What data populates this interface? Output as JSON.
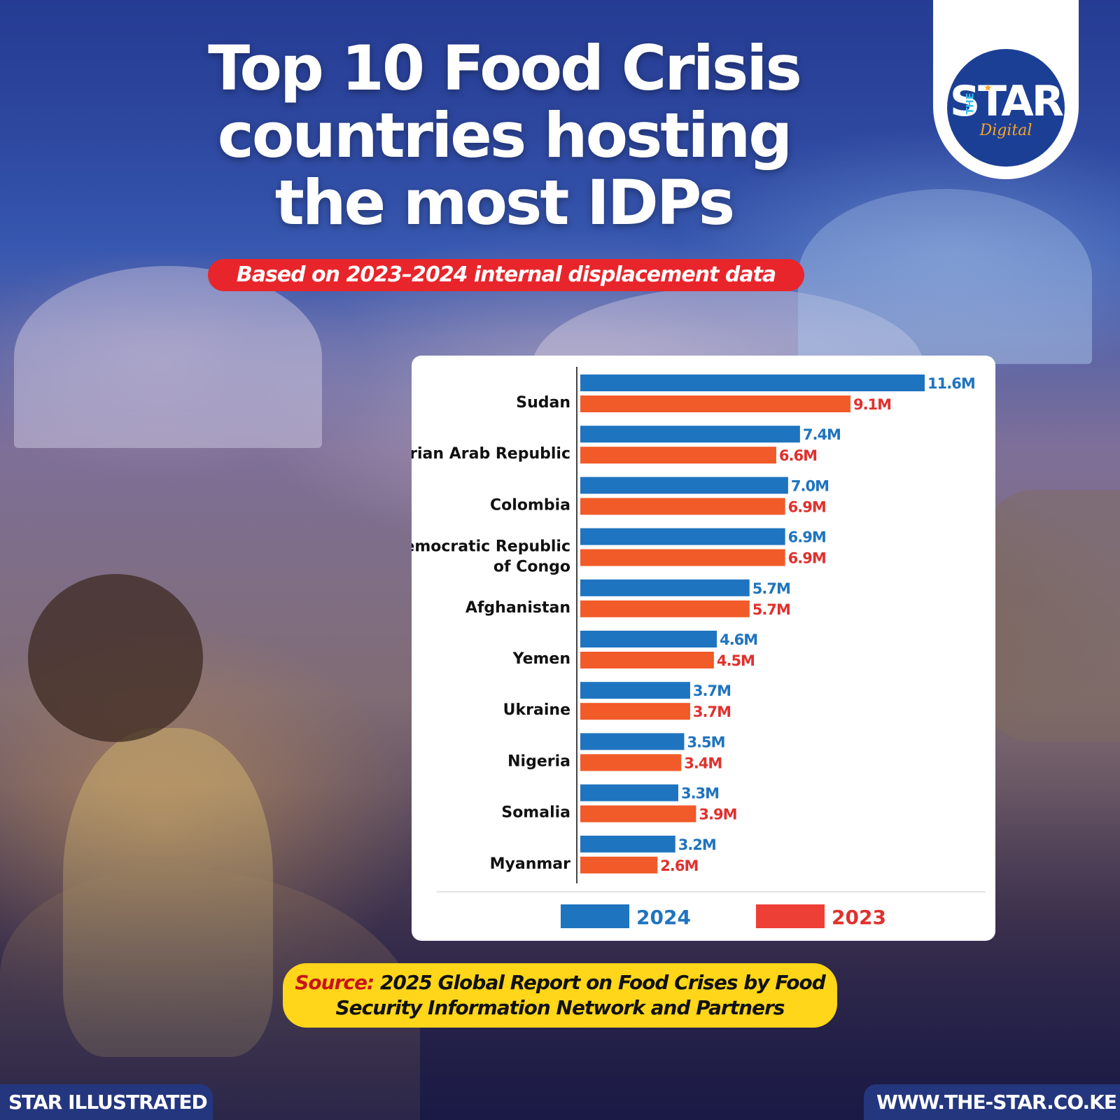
{
  "header": {
    "title": "Top 10 Food Crisis countries hosting the most IDPs",
    "subtitle": "Based on 2023–2024 internal displacement data"
  },
  "logo": {
    "the": "THE",
    "star": "STAR",
    "digital": "Digital"
  },
  "colors": {
    "series_2024": "#1f74bf",
    "series_2023": "#f15a29",
    "label_2024": "#1f74bf",
    "label_2023": "#e0312d",
    "legend_2023": "#ee3f36",
    "source_label": "#c8141b",
    "pill_red": "#e8252b",
    "pill_yellow": "#ffd619",
    "footer_navy": "#24367e"
  },
  "chart_data": {
    "type": "bar",
    "orientation": "horizontal",
    "categories": [
      [
        "Sudan"
      ],
      [
        "Syrian Arab Republic"
      ],
      [
        "Colombia"
      ],
      [
        "Democratic Republic",
        "of Congo"
      ],
      [
        "Afghanistan"
      ],
      [
        "Yemen"
      ],
      [
        "Ukraine"
      ],
      [
        "Nigeria"
      ],
      [
        "Somalia"
      ],
      [
        "Myanmar"
      ]
    ],
    "series": [
      {
        "name": "2024",
        "values": [
          11.6,
          7.4,
          7.0,
          6.9,
          5.7,
          4.6,
          3.7,
          3.5,
          3.3,
          3.2
        ],
        "labels": [
          "11.6M",
          "7.4M",
          "7.0M",
          "6.9M",
          "5.7M",
          "4.6M",
          "3.7M",
          "3.5M",
          "3.3M",
          "3.2M"
        ]
      },
      {
        "name": "2023",
        "values": [
          9.1,
          6.6,
          6.9,
          6.9,
          5.7,
          4.5,
          3.7,
          3.4,
          3.9,
          2.6
        ],
        "labels": [
          "9.1M",
          "6.6M",
          "6.9M",
          "6.9M",
          "5.7M",
          "4.5M",
          "3.7M",
          "3.4M",
          "3.9M",
          "2.6M"
        ]
      }
    ],
    "unit": "M",
    "xlim": [
      0,
      11.6
    ],
    "grid": false,
    "legend_position": "bottom"
  },
  "source": {
    "label": "Source:",
    "line1_rest": " 2025 Global Report on Food Crises by Food",
    "line2": "Security Information Network and Partners"
  },
  "footer": {
    "left": "STAR ILLUSTRATED",
    "right": "WWW.THE-STAR.CO.KE"
  }
}
